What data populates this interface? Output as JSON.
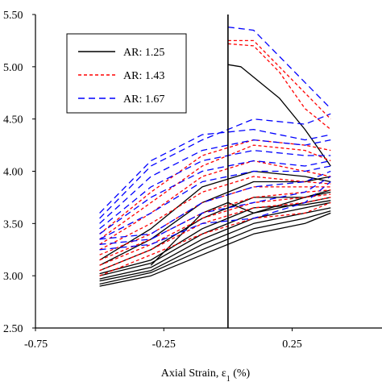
{
  "chart_data": {
    "type": "line",
    "xlabel": "Axial Strain, ε₁ (%)",
    "xlabel_main": "Axial Strain, ε",
    "xlabel_sub": "1",
    "xlabel_unit": " (%)",
    "ylabel": "",
    "xlim": [
      -0.75,
      0.6
    ],
    "ylim": [
      2.5,
      5.5
    ],
    "x_ticks": [
      -0.75,
      -0.25,
      0.25
    ],
    "x_tick_labels": [
      "-0.75",
      "-0.25",
      "0.25"
    ],
    "y_ticks": [
      2.5,
      3.0,
      3.5,
      4.0,
      4.5,
      5.0,
      5.5
    ],
    "y_tick_labels": [
      "2.50",
      "3.00",
      "3.50",
      "4.00",
      "4.50",
      "5.00",
      "5.50"
    ],
    "grid": false,
    "legend_position": "top-left",
    "reference_line_x": 0.0,
    "legend": [
      {
        "label": "AR: 1.25",
        "color": "#000000",
        "dash": "solid"
      },
      {
        "label": "AR: 1.43",
        "color": "#ff0000",
        "dash": "short-dash"
      },
      {
        "label": "AR: 1.67",
        "color": "#0000ff",
        "dash": "long-dash"
      }
    ],
    "series": [
      {
        "group": 0,
        "points": [
          [
            -0.5,
            2.9
          ],
          [
            -0.3,
            3.0
          ],
          [
            -0.1,
            3.2
          ],
          [
            0.1,
            3.4
          ],
          [
            0.3,
            3.5
          ],
          [
            0.4,
            3.6
          ]
        ]
      },
      {
        "group": 0,
        "points": [
          [
            -0.5,
            2.92
          ],
          [
            -0.3,
            3.03
          ],
          [
            -0.1,
            3.25
          ],
          [
            0.1,
            3.45
          ],
          [
            0.3,
            3.55
          ],
          [
            0.4,
            3.62
          ]
        ]
      },
      {
        "group": 0,
        "points": [
          [
            -0.5,
            2.95
          ],
          [
            -0.3,
            3.05
          ],
          [
            -0.1,
            3.3
          ],
          [
            0.1,
            3.5
          ],
          [
            0.3,
            3.6
          ],
          [
            0.4,
            3.65
          ]
        ]
      },
      {
        "group": 0,
        "points": [
          [
            -0.5,
            2.97
          ],
          [
            -0.3,
            3.08
          ],
          [
            -0.1,
            3.35
          ],
          [
            0.1,
            3.55
          ],
          [
            0.3,
            3.65
          ],
          [
            0.4,
            3.7
          ]
        ]
      },
      {
        "group": 0,
        "points": [
          [
            -0.5,
            3.0
          ],
          [
            -0.3,
            3.12
          ],
          [
            -0.1,
            3.4
          ],
          [
            0.1,
            3.6
          ],
          [
            0.3,
            3.7
          ],
          [
            0.4,
            3.75
          ]
        ]
      },
      {
        "group": 0,
        "points": [
          [
            -0.5,
            3.02
          ],
          [
            -0.3,
            3.15
          ],
          [
            -0.1,
            3.45
          ],
          [
            0.1,
            3.65
          ],
          [
            0.3,
            3.68
          ],
          [
            0.4,
            3.72
          ]
        ]
      },
      {
        "group": 0,
        "points": [
          [
            -0.5,
            3.05
          ],
          [
            -0.3,
            3.25
          ],
          [
            -0.1,
            3.55
          ],
          [
            0.1,
            3.75
          ],
          [
            0.3,
            3.75
          ],
          [
            0.4,
            3.8
          ]
        ]
      },
      {
        "group": 0,
        "points": [
          [
            -0.5,
            3.1
          ],
          [
            -0.3,
            3.35
          ],
          [
            -0.1,
            3.7
          ],
          [
            0.1,
            3.9
          ],
          [
            0.3,
            3.9
          ],
          [
            0.4,
            3.95
          ]
        ]
      },
      {
        "group": 0,
        "points": [
          [
            -0.5,
            3.15
          ],
          [
            -0.3,
            3.45
          ],
          [
            -0.1,
            3.85
          ],
          [
            0.1,
            4.0
          ],
          [
            0.3,
            3.95
          ],
          [
            0.4,
            3.9
          ]
        ]
      },
      {
        "group": 0,
        "points": [
          [
            -0.3,
            3.1
          ],
          [
            -0.1,
            3.6
          ],
          [
            0.0,
            3.7
          ],
          [
            0.1,
            3.6
          ],
          [
            0.3,
            3.75
          ],
          [
            0.4,
            3.82
          ]
        ]
      },
      {
        "group": 0,
        "points": [
          [
            0.0,
            5.02
          ],
          [
            0.05,
            5.0
          ],
          [
            0.2,
            4.7
          ],
          [
            0.3,
            4.4
          ],
          [
            0.4,
            4.05
          ]
        ]
      },
      {
        "group": 1,
        "points": [
          [
            -0.5,
            3.0
          ],
          [
            -0.3,
            3.2
          ],
          [
            -0.1,
            3.4
          ],
          [
            0.1,
            3.55
          ],
          [
            0.3,
            3.6
          ],
          [
            0.4,
            3.7
          ]
        ]
      },
      {
        "group": 1,
        "points": [
          [
            -0.5,
            3.05
          ],
          [
            -0.3,
            3.25
          ],
          [
            -0.1,
            3.5
          ],
          [
            0.1,
            3.65
          ],
          [
            0.3,
            3.7
          ],
          [
            0.4,
            3.75
          ]
        ]
      },
      {
        "group": 1,
        "points": [
          [
            -0.5,
            3.1
          ],
          [
            -0.3,
            3.3
          ],
          [
            -0.1,
            3.55
          ],
          [
            0.1,
            3.7
          ],
          [
            0.3,
            3.75
          ],
          [
            0.4,
            3.78
          ]
        ]
      },
      {
        "group": 1,
        "points": [
          [
            -0.5,
            3.15
          ],
          [
            -0.3,
            3.35
          ],
          [
            -0.1,
            3.6
          ],
          [
            0.1,
            3.75
          ],
          [
            0.3,
            3.8
          ],
          [
            0.4,
            3.82
          ]
        ]
      },
      {
        "group": 1,
        "points": [
          [
            -0.5,
            3.2
          ],
          [
            -0.3,
            3.4
          ],
          [
            -0.1,
            3.7
          ],
          [
            0.1,
            3.85
          ],
          [
            0.3,
            3.85
          ],
          [
            0.4,
            3.85
          ]
        ]
      },
      {
        "group": 1,
        "points": [
          [
            -0.5,
            3.25
          ],
          [
            -0.3,
            3.5
          ],
          [
            -0.1,
            3.8
          ],
          [
            0.1,
            3.95
          ],
          [
            0.3,
            3.9
          ],
          [
            0.4,
            3.88
          ]
        ]
      },
      {
        "group": 1,
        "points": [
          [
            -0.5,
            3.3
          ],
          [
            -0.3,
            3.6
          ],
          [
            -0.1,
            3.95
          ],
          [
            0.1,
            4.1
          ],
          [
            0.3,
            4.0
          ],
          [
            0.4,
            3.95
          ]
        ]
      },
      {
        "group": 1,
        "points": [
          [
            -0.5,
            3.35
          ],
          [
            -0.3,
            3.7
          ],
          [
            -0.1,
            4.05
          ],
          [
            0.1,
            4.25
          ],
          [
            0.3,
            4.2
          ],
          [
            0.4,
            4.1
          ]
        ]
      },
      {
        "group": 1,
        "points": [
          [
            -0.5,
            3.4
          ],
          [
            -0.3,
            3.8
          ],
          [
            -0.1,
            4.15
          ],
          [
            0.1,
            4.3
          ],
          [
            0.3,
            4.25
          ],
          [
            0.4,
            4.2
          ]
        ]
      },
      {
        "group": 1,
        "points": [
          [
            0.0,
            5.22
          ],
          [
            0.1,
            5.2
          ],
          [
            0.2,
            4.95
          ],
          [
            0.3,
            4.6
          ],
          [
            0.4,
            4.4
          ]
        ]
      },
      {
        "group": 1,
        "points": [
          [
            0.0,
            5.25
          ],
          [
            0.1,
            5.25
          ],
          [
            0.2,
            5.0
          ],
          [
            0.3,
            4.75
          ],
          [
            0.4,
            4.5
          ]
        ]
      },
      {
        "group": 2,
        "points": [
          [
            -0.5,
            3.25
          ],
          [
            -0.3,
            3.3
          ],
          [
            -0.1,
            3.5
          ],
          [
            0.1,
            3.55
          ],
          [
            0.3,
            3.7
          ],
          [
            0.4,
            3.9
          ]
        ]
      },
      {
        "group": 2,
        "points": [
          [
            -0.5,
            3.3
          ],
          [
            -0.3,
            3.35
          ],
          [
            -0.1,
            3.6
          ],
          [
            0.1,
            3.7
          ],
          [
            0.3,
            3.8
          ],
          [
            0.4,
            3.95
          ]
        ]
      },
      {
        "group": 2,
        "points": [
          [
            -0.5,
            3.35
          ],
          [
            -0.3,
            3.4
          ],
          [
            -0.1,
            3.7
          ],
          [
            0.1,
            3.85
          ],
          [
            0.3,
            3.9
          ],
          [
            0.4,
            4.0
          ]
        ]
      },
      {
        "group": 2,
        "points": [
          [
            -0.5,
            3.35
          ],
          [
            -0.3,
            3.6
          ],
          [
            -0.1,
            3.9
          ],
          [
            0.1,
            4.0
          ],
          [
            0.3,
            4.0
          ],
          [
            0.4,
            4.05
          ]
        ]
      },
      {
        "group": 2,
        "points": [
          [
            -0.5,
            3.4
          ],
          [
            -0.3,
            3.75
          ],
          [
            -0.1,
            4.0
          ],
          [
            0.1,
            4.1
          ],
          [
            0.3,
            4.05
          ],
          [
            0.4,
            4.1
          ]
        ]
      },
      {
        "group": 2,
        "points": [
          [
            -0.5,
            3.45
          ],
          [
            -0.3,
            3.85
          ],
          [
            -0.1,
            4.1
          ],
          [
            0.1,
            4.2
          ],
          [
            0.3,
            4.15
          ],
          [
            0.4,
            4.15
          ]
        ]
      },
      {
        "group": 2,
        "points": [
          [
            -0.5,
            3.5
          ],
          [
            -0.3,
            3.95
          ],
          [
            -0.1,
            4.2
          ],
          [
            0.1,
            4.3
          ],
          [
            0.3,
            4.25
          ],
          [
            0.4,
            4.3
          ]
        ]
      },
      {
        "group": 2,
        "points": [
          [
            -0.5,
            3.55
          ],
          [
            -0.3,
            4.05
          ],
          [
            -0.1,
            4.3
          ],
          [
            0.1,
            4.5
          ],
          [
            0.3,
            4.45
          ],
          [
            0.4,
            4.55
          ]
        ]
      },
      {
        "group": 2,
        "points": [
          [
            -0.5,
            3.6
          ],
          [
            -0.3,
            4.1
          ],
          [
            -0.1,
            4.35
          ],
          [
            0.1,
            4.4
          ],
          [
            0.3,
            4.3
          ],
          [
            0.4,
            4.35
          ]
        ]
      },
      {
        "group": 2,
        "points": [
          [
            0.0,
            5.38
          ],
          [
            0.1,
            5.35
          ],
          [
            0.2,
            5.1
          ],
          [
            0.3,
            4.85
          ],
          [
            0.4,
            4.6
          ]
        ]
      }
    ]
  }
}
